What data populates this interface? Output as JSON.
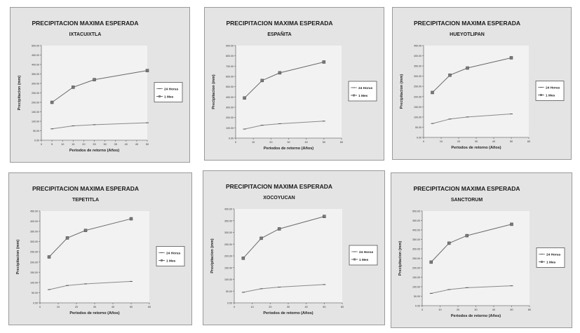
{
  "chart_data": [
    {
      "type": "line",
      "title": "PRECIPITACION MAXIMA ESPERADA",
      "subtitle": "IXTACUIXTLA",
      "xlabel": "Periodos de retorno (Años)",
      "ylabel": "Precipitacion (mm)",
      "xlim": [
        0,
        50
      ],
      "ylim": [
        0,
        500
      ],
      "xticks": [
        0,
        5,
        10,
        15,
        20,
        25,
        30,
        35,
        40,
        45,
        50
      ],
      "yticks": [
        0,
        50,
        100,
        150,
        200,
        250,
        300,
        350,
        400,
        450,
        500
      ],
      "ytick_labels": [
        "0.00",
        "50.00",
        "100.00",
        "150.00",
        "200.00",
        "250.00",
        "300.00",
        "350.00",
        "400.00",
        "450.00",
        "500.00"
      ],
      "legend_position": "right",
      "series": [
        {
          "name": "24 Horas",
          "x": [
            5,
            15,
            25,
            50
          ],
          "y": [
            60,
            76,
            82,
            92
          ]
        },
        {
          "name": "1 Mes",
          "x": [
            5,
            15,
            25,
            50
          ],
          "y": [
            200,
            280,
            320,
            368
          ]
        }
      ]
    },
    {
      "type": "line",
      "title": "PRECIPITACION MAXIMA ESPERADA",
      "subtitle": "ESPAÑITA",
      "xlabel": "Periodos de retorno (Años)",
      "ylabel": "Precipitacion (mm)",
      "xlim": [
        0,
        60
      ],
      "ylim": [
        0,
        900
      ],
      "xticks": [
        0,
        10,
        20,
        30,
        40,
        50,
        60
      ],
      "yticks": [
        0,
        100,
        200,
        300,
        400,
        500,
        600,
        700,
        800,
        900
      ],
      "ytick_labels": [
        "0.00",
        "100.00",
        "200.00",
        "300.00",
        "400.00",
        "500.00",
        "600.00",
        "700.00",
        "800.00",
        "900.00"
      ],
      "legend_position": "right",
      "series": [
        {
          "name": "24 Horas",
          "x": [
            5,
            15,
            25,
            50
          ],
          "y": [
            88,
            125,
            140,
            165
          ]
        },
        {
          "name": "1 Mes",
          "x": [
            5,
            15,
            25,
            50
          ],
          "y": [
            390,
            560,
            635,
            740
          ]
        }
      ]
    },
    {
      "type": "line",
      "title": "PRECIPITACION MAXIMA ESPERADA",
      "subtitle": "HUEYOTLIPAN",
      "xlabel": "Periodos de retorno (Años)",
      "ylabel": "Precipitacion (mm)",
      "xlim": [
        0,
        60
      ],
      "ylim": [
        0,
        450
      ],
      "xticks": [
        0,
        10,
        20,
        30,
        40,
        50,
        60
      ],
      "yticks": [
        0,
        50,
        100,
        150,
        200,
        250,
        300,
        350,
        400,
        450
      ],
      "ytick_labels": [
        "0.00",
        "50.00",
        "100.00",
        "150.00",
        "200.00",
        "250.00",
        "300.00",
        "350.00",
        "400.00",
        "450.00"
      ],
      "legend_position": "right",
      "series": [
        {
          "name": "24 Horas",
          "x": [
            5,
            15,
            25,
            50
          ],
          "y": [
            68,
            90,
            100,
            115
          ]
        },
        {
          "name": "1 Mes",
          "x": [
            5,
            15,
            25,
            50
          ],
          "y": [
            220,
            305,
            340,
            390
          ]
        }
      ]
    },
    {
      "type": "line",
      "title": "PRECIPITACION MAXIMA ESPERADA",
      "subtitle": "TEPETITLA",
      "xlabel": "Periodos de retorno (Años)",
      "ylabel": "Precipitacion (mm)",
      "xlim": [
        0,
        60
      ],
      "ylim": [
        0,
        450
      ],
      "xticks": [
        0,
        10,
        20,
        30,
        40,
        50,
        60
      ],
      "yticks": [
        0,
        50,
        100,
        150,
        200,
        250,
        300,
        350,
        400,
        450
      ],
      "ytick_labels": [
        "0.00",
        "50.00",
        "100.00",
        "150.00",
        "200.00",
        "250.00",
        "300.00",
        "350.00",
        "400.00",
        "450.00"
      ],
      "legend_position": "right",
      "series": [
        {
          "name": "24 Horas",
          "x": [
            5,
            15,
            25,
            50
          ],
          "y": [
            65,
            85,
            93,
            105
          ]
        },
        {
          "name": "1 Mes",
          "x": [
            5,
            15,
            25,
            50
          ],
          "y": [
            225,
            318,
            355,
            412
          ]
        }
      ]
    },
    {
      "type": "line",
      "title": "PRECIPITACION MAXIMA ESPERADA",
      "subtitle": "XOCOYUCAN",
      "xlabel": "Periodos de retorno (Años)",
      "ylabel": "Precipitacion (mm)",
      "xlim": [
        0,
        60
      ],
      "ylim": [
        0,
        400
      ],
      "xticks": [
        0,
        10,
        20,
        30,
        40,
        50,
        60
      ],
      "yticks": [
        0,
        50,
        100,
        150,
        200,
        250,
        300,
        350,
        400
      ],
      "ytick_labels": [
        "0.00",
        "50.00",
        "100.00",
        "150.00",
        "200.00",
        "250.00",
        "300.00",
        "350.00",
        "400.00"
      ],
      "legend_position": "right",
      "series": [
        {
          "name": "24 Horas",
          "x": [
            5,
            15,
            25,
            50
          ],
          "y": [
            45,
            60,
            67,
            78
          ]
        },
        {
          "name": "1 Mes",
          "x": [
            5,
            15,
            25,
            50
          ],
          "y": [
            190,
            275,
            315,
            368
          ]
        }
      ]
    },
    {
      "type": "line",
      "title": "PRECIPITACION MAXIMA ESPERADA",
      "subtitle": "SANCTORUM",
      "xlabel": "Periodos de retorno (Años)",
      "ylabel": "Precipitacion (mm)",
      "xlim": [
        0,
        60
      ],
      "ylim": [
        0,
        500
      ],
      "xticks": [
        0,
        10,
        20,
        30,
        40,
        50,
        60
      ],
      "yticks": [
        0,
        50,
        100,
        150,
        200,
        250,
        300,
        350,
        400,
        450,
        500
      ],
      "ytick_labels": [
        "0.00",
        "50.00",
        "100.00",
        "150.00",
        "200.00",
        "250.00",
        "300.00",
        "350.00",
        "400.00",
        "450.00",
        "500.00"
      ],
      "legend_position": "right",
      "series": [
        {
          "name": "24 Horas",
          "x": [
            5,
            15,
            25,
            50
          ],
          "y": [
            65,
            85,
            95,
            105
          ]
        },
        {
          "name": "1 Mes",
          "x": [
            5,
            15,
            25,
            50
          ],
          "y": [
            230,
            330,
            370,
            430
          ]
        }
      ]
    }
  ]
}
